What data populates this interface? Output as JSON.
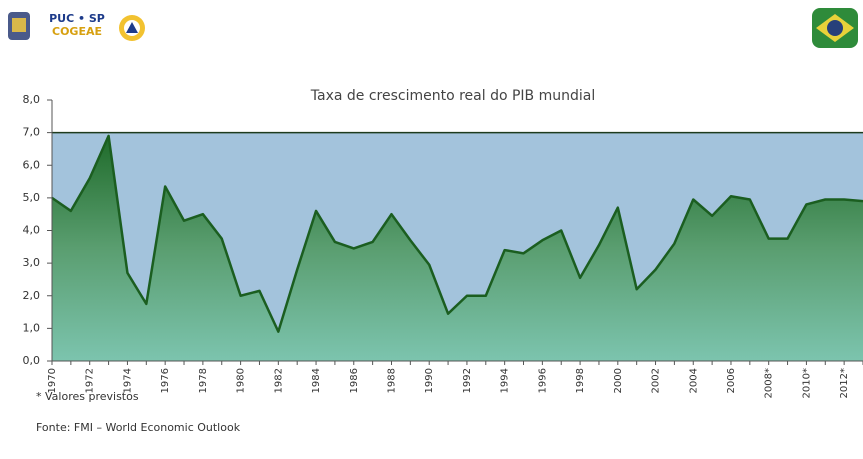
{
  "header": {
    "logo_text_1": "PUC • SP",
    "logo_text_2": "COGEAE"
  },
  "chart_data": {
    "type": "area",
    "title": "Taxa de crescimento real do PIB mundial",
    "categories": [
      "1970",
      null,
      "1972",
      null,
      "1974",
      null,
      "1976",
      null,
      "1978",
      null,
      "1980",
      null,
      "1982",
      null,
      "1984",
      null,
      "1986",
      null,
      "1988",
      null,
      "1990",
      null,
      "1992",
      null,
      "1994",
      null,
      "1996",
      null,
      "1998",
      null,
      "2000",
      null,
      "2002",
      null,
      "2004",
      null,
      "2006",
      null,
      "2008*",
      null,
      "2010*",
      null,
      "2012*",
      null
    ],
    "series": [
      {
        "name": "PIB mundial",
        "color": "#1b5e20",
        "values": [
          5.0,
          4.6,
          5.6,
          6.9,
          2.7,
          1.75,
          5.35,
          4.3,
          4.5,
          3.75,
          2.0,
          2.15,
          0.9,
          2.8,
          4.6,
          3.65,
          3.45,
          3.65,
          4.5,
          3.7,
          2.95,
          1.45,
          2.0,
          2.0,
          3.4,
          3.3,
          3.7,
          4.0,
          2.55,
          3.55,
          4.7,
          2.2,
          2.8,
          3.6,
          4.95,
          4.45,
          5.05,
          4.95,
          3.75,
          3.75,
          4.8,
          4.95,
          4.95,
          4.9
        ]
      }
    ],
    "background_band": {
      "from": 0,
      "to": 7,
      "color": "#a3c3dc"
    },
    "ylim": [
      0,
      8
    ],
    "yticks": [
      {
        "value": 0,
        "label": "0,0"
      },
      {
        "value": 1,
        "label": "1,0"
      },
      {
        "value": 2,
        "label": "2,0"
      },
      {
        "value": 3,
        "label": "3,0"
      },
      {
        "value": 4,
        "label": "4,0"
      },
      {
        "value": 5,
        "label": "5,0"
      },
      {
        "value": 6,
        "label": "6,0"
      },
      {
        "value": 7,
        "label": "7,0"
      },
      {
        "value": 8,
        "label": "8,0"
      }
    ],
    "notes": [
      "* Valores previstos",
      "Fonte: FMI – World Economic Outlook"
    ]
  }
}
